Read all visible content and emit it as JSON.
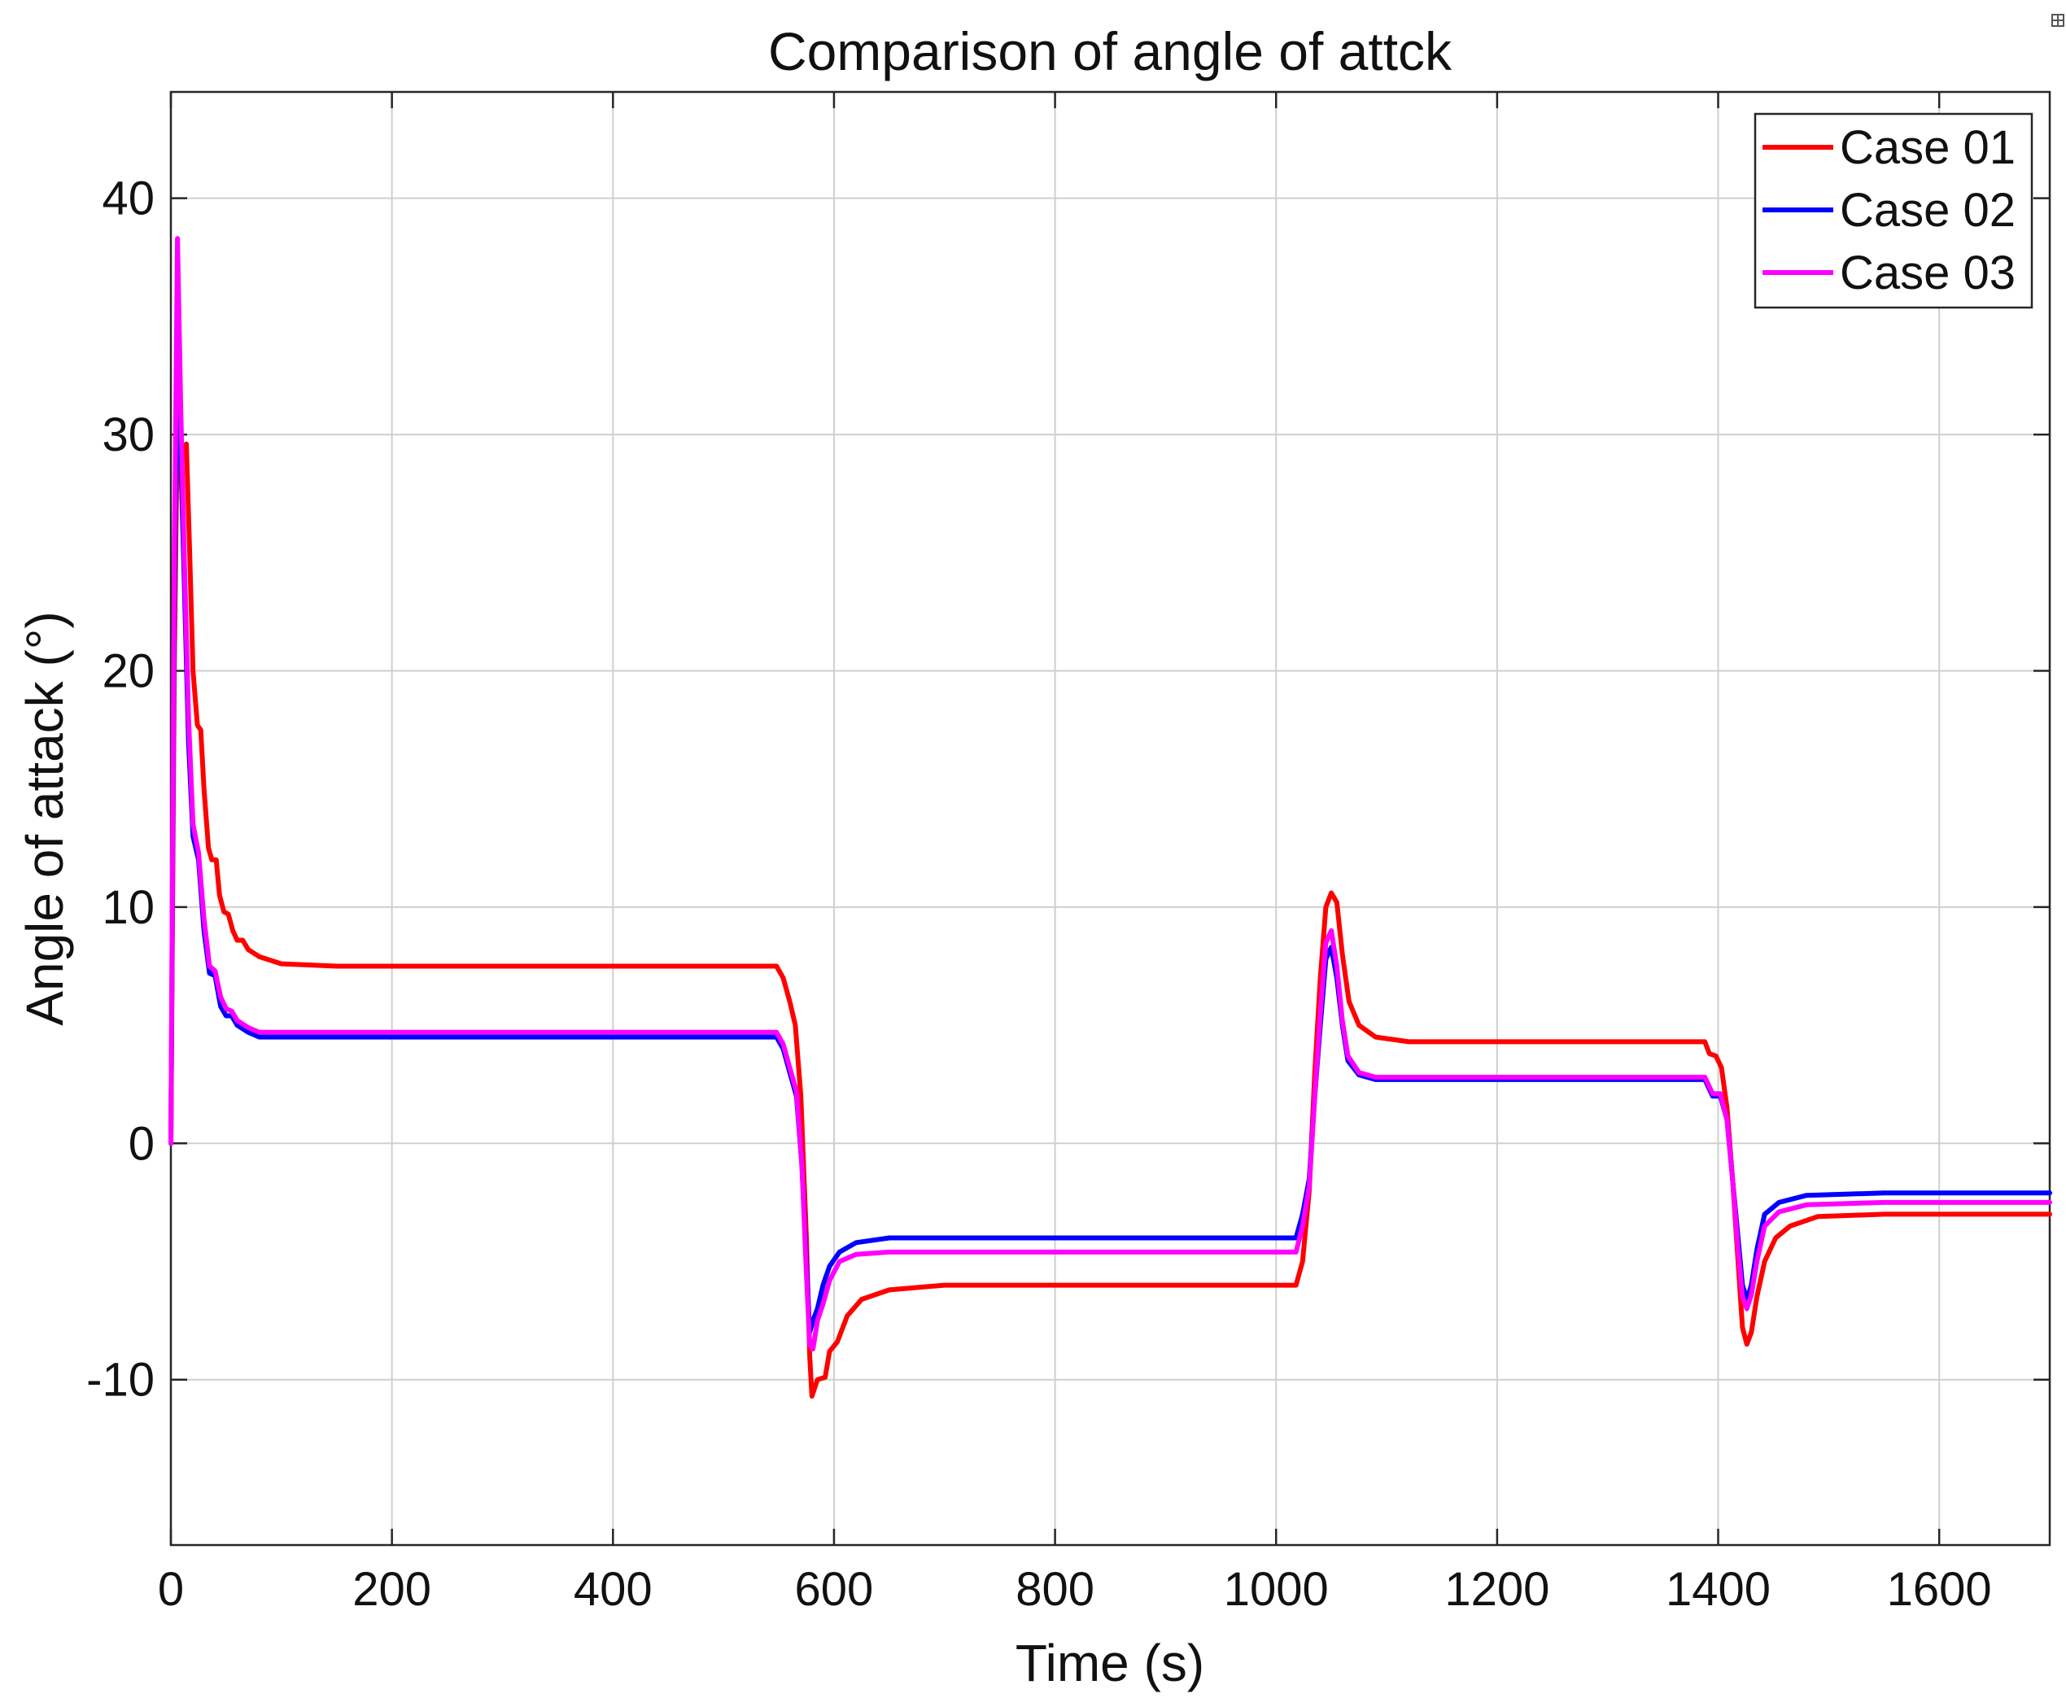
{
  "chart_data": {
    "type": "line",
    "title": "Comparison of angle of attck",
    "xlabel": "Time (s)",
    "ylabel": "Angle of attack (°)",
    "xlim": [
      0,
      1700
    ],
    "ylim": [
      -17,
      44.5
    ],
    "xticks": [
      0,
      200,
      400,
      600,
      800,
      1000,
      1200,
      1400,
      1600
    ],
    "yticks": [
      -10,
      0,
      10,
      20,
      30,
      40
    ],
    "xtick_labels": [
      "0",
      "200",
      "400",
      "600",
      "800",
      "1000",
      "1200",
      "1400",
      "1600"
    ],
    "ytick_labels": [
      "-10",
      "0",
      "10",
      "20",
      "30",
      "40"
    ],
    "grid": true,
    "legend_position": "top-right",
    "series": [
      {
        "name": "Case 01",
        "color": "#ff0000",
        "points": [
          [
            0,
            0
          ],
          [
            3,
            20
          ],
          [
            6,
            31
          ],
          [
            10,
            29
          ],
          [
            14,
            29.6
          ],
          [
            17,
            25
          ],
          [
            20,
            20
          ],
          [
            24,
            17.7
          ],
          [
            27,
            17.5
          ],
          [
            30,
            15
          ],
          [
            34,
            12.5
          ],
          [
            37,
            12
          ],
          [
            41,
            12
          ],
          [
            44,
            10.5
          ],
          [
            48,
            9.8
          ],
          [
            52,
            9.7
          ],
          [
            56,
            9
          ],
          [
            60,
            8.6
          ],
          [
            65,
            8.6
          ],
          [
            70,
            8.2
          ],
          [
            80,
            7.9
          ],
          [
            100,
            7.6
          ],
          [
            150,
            7.5
          ],
          [
            300,
            7.5
          ],
          [
            548,
            7.5
          ],
          [
            554,
            7
          ],
          [
            560,
            6
          ],
          [
            565,
            5
          ],
          [
            570,
            2
          ],
          [
            575,
            -4
          ],
          [
            578,
            -9
          ],
          [
            580,
            -10.7
          ],
          [
            585,
            -10
          ],
          [
            592,
            -9.9
          ],
          [
            596,
            -8.8
          ],
          [
            603,
            -8.4
          ],
          [
            612,
            -7.3
          ],
          [
            625,
            -6.6
          ],
          [
            650,
            -6.2
          ],
          [
            700,
            -6
          ],
          [
            900,
            -6
          ],
          [
            1018,
            -6
          ],
          [
            1024,
            -5
          ],
          [
            1030,
            -2
          ],
          [
            1035,
            3
          ],
          [
            1040,
            7
          ],
          [
            1045,
            10
          ],
          [
            1050,
            10.6
          ],
          [
            1055,
            10.2
          ],
          [
            1060,
            8
          ],
          [
            1066,
            6
          ],
          [
            1075,
            5
          ],
          [
            1090,
            4.5
          ],
          [
            1120,
            4.3
          ],
          [
            1300,
            4.3
          ],
          [
            1388,
            4.3
          ],
          [
            1392,
            3.8
          ],
          [
            1398,
            3.7
          ],
          [
            1403,
            3.2
          ],
          [
            1408,
            1.5
          ],
          [
            1413,
            -1.5
          ],
          [
            1418,
            -5
          ],
          [
            1422,
            -7.8
          ],
          [
            1426,
            -8.5
          ],
          [
            1430,
            -8
          ],
          [
            1435,
            -6.5
          ],
          [
            1442,
            -5
          ],
          [
            1452,
            -4
          ],
          [
            1465,
            -3.5
          ],
          [
            1490,
            -3.1
          ],
          [
            1550,
            -3
          ],
          [
            1700,
            -3
          ]
        ]
      },
      {
        "name": "Case 02",
        "color": "#0000ff",
        "points": [
          [
            0,
            0
          ],
          [
            3,
            22
          ],
          [
            6,
            36
          ],
          [
            9,
            29
          ],
          [
            12,
            24
          ],
          [
            16,
            17
          ],
          [
            20,
            13
          ],
          [
            25,
            12
          ],
          [
            30,
            9
          ],
          [
            35,
            7.2
          ],
          [
            40,
            7.1
          ],
          [
            45,
            5.8
          ],
          [
            50,
            5.4
          ],
          [
            55,
            5.4
          ],
          [
            60,
            5
          ],
          [
            70,
            4.7
          ],
          [
            80,
            4.5
          ],
          [
            100,
            4.5
          ],
          [
            300,
            4.5
          ],
          [
            548,
            4.5
          ],
          [
            554,
            4
          ],
          [
            560,
            3
          ],
          [
            566,
            2
          ],
          [
            571,
            -1
          ],
          [
            575,
            -5
          ],
          [
            578,
            -8
          ],
          [
            581,
            -7.5
          ],
          [
            585,
            -7
          ],
          [
            590,
            -6
          ],
          [
            596,
            -5.2
          ],
          [
            605,
            -4.6
          ],
          [
            620,
            -4.2
          ],
          [
            650,
            -4
          ],
          [
            900,
            -4
          ],
          [
            1018,
            -4
          ],
          [
            1024,
            -3
          ],
          [
            1030,
            -1.5
          ],
          [
            1035,
            2
          ],
          [
            1040,
            5
          ],
          [
            1045,
            7.8
          ],
          [
            1050,
            8.3
          ],
          [
            1055,
            7
          ],
          [
            1060,
            5
          ],
          [
            1065,
            3.5
          ],
          [
            1075,
            2.9
          ],
          [
            1090,
            2.7
          ],
          [
            1200,
            2.7
          ],
          [
            1388,
            2.7
          ],
          [
            1395,
            2
          ],
          [
            1402,
            2
          ],
          [
            1408,
            1
          ],
          [
            1413,
            -1.5
          ],
          [
            1418,
            -4
          ],
          [
            1422,
            -6
          ],
          [
            1426,
            -6.6
          ],
          [
            1430,
            -6
          ],
          [
            1435,
            -4.5
          ],
          [
            1442,
            -3
          ],
          [
            1455,
            -2.5
          ],
          [
            1480,
            -2.2
          ],
          [
            1550,
            -2.1
          ],
          [
            1700,
            -2.1
          ]
        ]
      },
      {
        "name": "Case 03",
        "color": "#ff00ff",
        "points": [
          [
            0,
            0
          ],
          [
            3,
            24
          ],
          [
            6,
            38.3
          ],
          [
            9,
            31
          ],
          [
            12,
            25
          ],
          [
            16,
            18
          ],
          [
            20,
            13.5
          ],
          [
            25,
            12.3
          ],
          [
            30,
            9.5
          ],
          [
            35,
            7.5
          ],
          [
            40,
            7.3
          ],
          [
            45,
            6.2
          ],
          [
            50,
            5.7
          ],
          [
            55,
            5.6
          ],
          [
            60,
            5.2
          ],
          [
            70,
            4.9
          ],
          [
            80,
            4.7
          ],
          [
            100,
            4.7
          ],
          [
            300,
            4.7
          ],
          [
            548,
            4.7
          ],
          [
            554,
            4.2
          ],
          [
            560,
            3.2
          ],
          [
            566,
            2.2
          ],
          [
            571,
            -1
          ],
          [
            575,
            -5.5
          ],
          [
            578,
            -8.5
          ],
          [
            581,
            -8.7
          ],
          [
            585,
            -7.5
          ],
          [
            590,
            -6.8
          ],
          [
            596,
            -5.8
          ],
          [
            605,
            -5
          ],
          [
            620,
            -4.7
          ],
          [
            650,
            -4.6
          ],
          [
            900,
            -4.6
          ],
          [
            1018,
            -4.6
          ],
          [
            1024,
            -3.5
          ],
          [
            1030,
            -1.8
          ],
          [
            1035,
            2
          ],
          [
            1040,
            5.5
          ],
          [
            1045,
            8.5
          ],
          [
            1050,
            9
          ],
          [
            1055,
            7.5
          ],
          [
            1060,
            5.2
          ],
          [
            1065,
            3.7
          ],
          [
            1075,
            3
          ],
          [
            1090,
            2.8
          ],
          [
            1200,
            2.8
          ],
          [
            1388,
            2.8
          ],
          [
            1395,
            2.1
          ],
          [
            1402,
            2.1
          ],
          [
            1408,
            1
          ],
          [
            1413,
            -1.5
          ],
          [
            1418,
            -4.5
          ],
          [
            1422,
            -6.5
          ],
          [
            1426,
            -7
          ],
          [
            1430,
            -6.4
          ],
          [
            1435,
            -5
          ],
          [
            1442,
            -3.5
          ],
          [
            1455,
            -2.9
          ],
          [
            1480,
            -2.6
          ],
          [
            1550,
            -2.5
          ],
          [
            1700,
            -2.5
          ]
        ]
      }
    ]
  }
}
